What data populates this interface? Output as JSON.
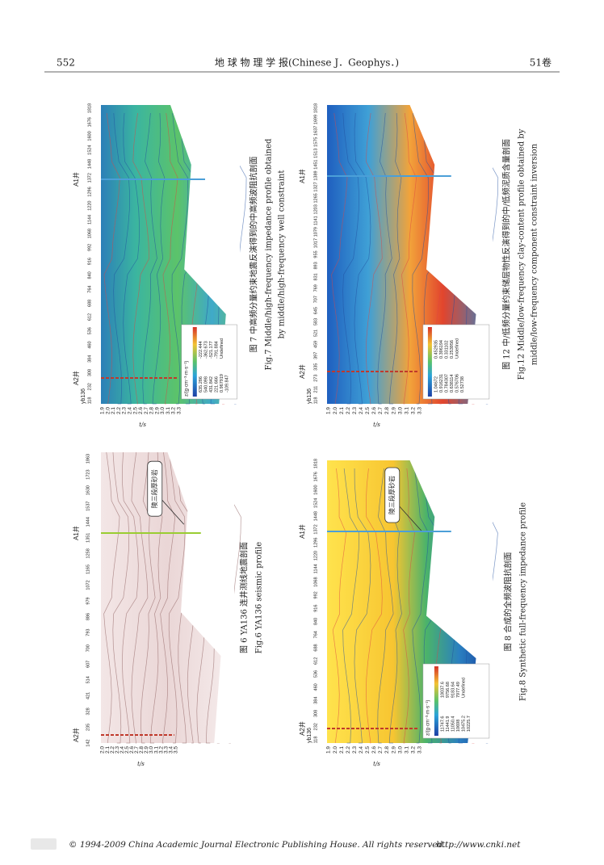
{
  "header": {
    "page_number": "552",
    "journal": "地 球 物 理 学 报(Chinese J．Geophys．)",
    "volume": "51卷"
  },
  "figures": [
    {
      "well_left": "A2井",
      "well_right": "A1井",
      "line_name": "yb136",
      "traces": [
        "118",
        "232",
        "308",
        "384",
        "460",
        "536",
        "612",
        "688",
        "764",
        "840",
        "916",
        "992",
        "1068",
        "1144",
        "1220",
        "1296",
        "1372",
        "1448",
        "1524",
        "1600",
        "1676",
        "1818"
      ],
      "time_ticks": [
        "1.9",
        "2.0",
        "2.1",
        "2.2",
        "2.3",
        "2.4",
        "2.5",
        "2.6",
        "2.7",
        "2.8",
        "2.9",
        "3.0",
        "3.1",
        "3.2",
        "3.3"
      ],
      "time_label": "t/s",
      "legend": {
        "title": "z/(g·cm⁻³·m·s⁻¹)",
        "values": [
          "635.286",
          "540.098",
          "431.842",
          "221.666",
          "0.967919",
          "-109.847",
          "-222.444",
          "-362.673",
          "-521.177",
          "-791.884",
          "Undefined"
        ]
      },
      "caption_cn": "图 7  中高频分量约束地震反演得到的中高频波阻抗剖面",
      "caption_en": [
        "Fig.7  Middle/high-frequency impedance profile obtained",
        "by middle/high-frequency well constraint"
      ]
    },
    {
      "well_left": "A2井",
      "well_right": "A1井",
      "traces": [
        "142",
        "235",
        "328",
        "421",
        "514",
        "607",
        "700",
        "793",
        "886",
        "979",
        "1072",
        "1165",
        "1258",
        "1351",
        "1444",
        "1537",
        "1630",
        "1723",
        "1863"
      ],
      "time_ticks": [
        "2.0",
        "2.1",
        "2.2",
        "2.3",
        "2.4",
        "2.5",
        "2.6",
        "2.7",
        "2.8",
        "2.9",
        "3.0",
        "3.1",
        "3.2",
        "3.3",
        "3.4",
        "3.5"
      ],
      "time_label": "t/s",
      "annotation": "陵三段厚砂岩",
      "caption_cn": "图 6  YA136 连井测线地震剖面",
      "caption_en": [
        "Fig.6  YA136 seismic profile"
      ]
    },
    {
      "well_left": "A2井",
      "well_right": "A1井",
      "line_name": "yb136",
      "traces": [
        "118",
        "211",
        "273",
        "335",
        "397",
        "459",
        "521",
        "583",
        "645",
        "707",
        "769",
        "831",
        "893",
        "955",
        "1017",
        "1079",
        "1141",
        "1203",
        "1265",
        "1327",
        "1389",
        "1451",
        "1513",
        "1575",
        "1637",
        "1699",
        "1818"
      ],
      "time_ticks": [
        "1.9",
        "2.0",
        "2.1",
        "2.2",
        "2.3",
        "2.4",
        "2.5",
        "2.6",
        "2.7",
        "2.8",
        "2.9",
        "3.0",
        "3.1",
        "3.2",
        "3.3"
      ],
      "time_label": "t/s",
      "legend": {
        "values": [
          "1.04672",
          "0.916231",
          "0.784307",
          "0.638114",
          "0.576706",
          "0.52738",
          "0.452935",
          "0.396194",
          "0.331102",
          "0.253956",
          "Undefined"
        ]
      },
      "caption_cn": "图 12  中/低频分量约束储层物性反演得到的中/低频泥质含量剖面",
      "caption_en": [
        "Fig.12  Middle/low-frequency clay-content profile obtained by",
        "middle/low-frequency component constraint inversion"
      ]
    },
    {
      "well_left": "A2井",
      "well_right": "A1井",
      "line_name": "yb136",
      "traces": [
        "118",
        "232",
        "308",
        "384",
        "460",
        "536",
        "612",
        "688",
        "764",
        "840",
        "916",
        "992",
        "1068",
        "1144",
        "1220",
        "1296",
        "1372",
        "1448",
        "1524",
        "1600",
        "1676",
        "1818"
      ],
      "time_ticks": [
        "1.9",
        "2.0",
        "2.1",
        "2.2",
        "2.3",
        "2.4",
        "2.5",
        "2.6",
        "2.7",
        "2.8",
        "2.9",
        "3.0",
        "3.1",
        "3.2",
        "3.3"
      ],
      "time_label": "t/s",
      "legend": {
        "title": "z/(g·cm⁻³·m·s⁻¹)",
        "values": [
          "11747.6",
          "11441.9",
          "11050.4",
          "10698",
          "10475.2",
          "10225.7",
          "10037.6",
          "9756.68",
          "9183.64",
          "7977.49",
          "Undefined"
        ]
      },
      "annotation": "陵三段厚砂岩",
      "caption_cn": "图 8  合成的全频波阻抗剖面",
      "caption_en": [
        "Fig.8  Synthetic full-frequency impedance profile"
      ]
    }
  ],
  "footer": {
    "copyright": "© 1994-2009 China Academic Journal Electronic Publishing House. All rights reserved.",
    "url": "http://www.cnki.net"
  }
}
